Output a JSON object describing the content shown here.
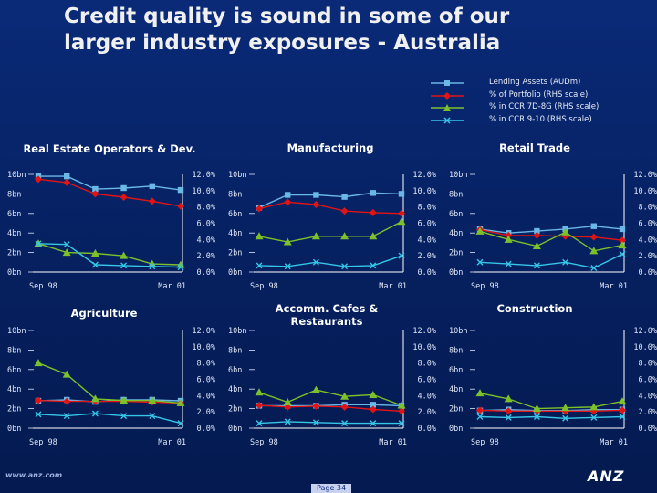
{
  "title": {
    "line1": "Credit quality is sound in some of our",
    "line2": "larger industry exposures - Australia"
  },
  "legend": [
    {
      "label": "Lending Assets (AUDm)",
      "color": "#6ab8e6",
      "marker": "square"
    },
    {
      "label": "% of Portfolio (RHS scale)",
      "color": "#e01414",
      "marker": "diamond"
    },
    {
      "label": "% in CCR 7D-8G (RHS scale)",
      "color": "#7cc12a",
      "marker": "triangle"
    },
    {
      "label": "% in CCR 9-10 (RHS scale)",
      "color": "#36c6e8",
      "marker": "x"
    }
  ],
  "footer": {
    "url": "www.anz.com",
    "page": "Page 34",
    "logo": "ANZ"
  },
  "chart_data": [
    {
      "type": "line",
      "title": "Real Estate Operators & Dev.",
      "x": [
        "Sep 98",
        "",
        "",
        "",
        "",
        "",
        "Mar 01"
      ],
      "y_left_ticks": [
        "10bn",
        "8bn",
        "6bn",
        "4bn",
        "2bn",
        "0bn"
      ],
      "y_right_ticks": [
        "12.0%",
        "10.0%",
        "8.0%",
        "6.0%",
        "4.0%",
        "2.0%",
        "0.0%"
      ],
      "ylim_left": [
        0,
        10
      ],
      "ylim_right": [
        0,
        12
      ],
      "series": [
        {
          "values_left": [
            9.8,
            9.8,
            8.5,
            8.6,
            8.8,
            8.4
          ]
        },
        {
          "values_right": [
            11.4,
            11.0,
            9.6,
            9.2,
            8.7,
            8.1
          ]
        },
        {
          "values_right": [
            3.5,
            2.4,
            2.3,
            2.0,
            1.0,
            0.9
          ]
        },
        {
          "values_right": [
            3.5,
            3.4,
            0.9,
            0.8,
            0.7,
            0.6
          ]
        }
      ]
    },
    {
      "type": "line",
      "title": "Manufacturing",
      "x": [
        "Sep 98",
        "",
        "",
        "",
        "",
        "",
        "Mar 01"
      ],
      "y_left_ticks": [
        "10bn",
        "8bn",
        "6bn",
        "4bn",
        "2bn",
        "0bn"
      ],
      "y_right_ticks": [
        "12.0%",
        "10.0%",
        "8.0%",
        "6.0%",
        "4.0%",
        "2.0%",
        "0.0%"
      ],
      "ylim_left": [
        0,
        10
      ],
      "ylim_right": [
        0,
        12
      ],
      "series": [
        {
          "values_left": [
            6.6,
            7.9,
            7.9,
            7.7,
            8.1,
            8.0
          ]
        },
        {
          "values_right": [
            7.8,
            8.6,
            8.3,
            7.5,
            7.3,
            7.2
          ]
        },
        {
          "values_right": [
            4.4,
            3.7,
            4.4,
            4.4,
            4.4,
            6.2
          ]
        },
        {
          "values_right": [
            0.8,
            0.7,
            1.2,
            0.7,
            0.8,
            2.0
          ]
        }
      ]
    },
    {
      "type": "line",
      "title": "Retail Trade",
      "x": [
        "Sep 98",
        "",
        "",
        "",
        "",
        "",
        "Mar 01"
      ],
      "y_left_ticks": [
        "10bn",
        "8bn",
        "6bn",
        "4bn",
        "2bn",
        "0bn"
      ],
      "y_right_ticks": [
        "12.0%",
        "10.0%",
        "8.0%",
        "6.0%",
        "4.0%",
        "2.0%",
        "0.0%"
      ],
      "ylim_left": [
        0,
        10
      ],
      "ylim_right": [
        0,
        12
      ],
      "series": [
        {
          "values_left": [
            4.4,
            4.0,
            4.2,
            4.4,
            4.7,
            4.4
          ]
        },
        {
          "values_right": [
            5.2,
            4.5,
            4.5,
            4.4,
            4.3,
            3.9
          ]
        },
        {
          "values_right": [
            5.0,
            4.0,
            3.2,
            4.9,
            2.6,
            3.3
          ]
        },
        {
          "values_right": [
            1.2,
            1.0,
            0.8,
            1.2,
            0.5,
            2.2
          ]
        }
      ]
    },
    {
      "type": "line",
      "title": "Agriculture",
      "x": [
        "Sep 98",
        "",
        "",
        "",
        "",
        "",
        "Mar 01"
      ],
      "y_left_ticks": [
        "10bn",
        "8bn",
        "6bn",
        "4bn",
        "2bn",
        "0bn"
      ],
      "y_right_ticks": [
        "12.0%",
        "10.0%",
        "8.0%",
        "6.0%",
        "4.0%",
        "2.0%",
        "0.0%"
      ],
      "ylim_left": [
        0,
        10
      ],
      "ylim_right": [
        0,
        12
      ],
      "series": [
        {
          "values_left": [
            2.8,
            2.9,
            2.7,
            2.9,
            2.9,
            2.8
          ]
        },
        {
          "values_right": [
            3.4,
            3.3,
            3.3,
            3.3,
            3.2,
            3.1
          ]
        },
        {
          "values_right": [
            8.0,
            6.6,
            3.6,
            3.4,
            3.4,
            3.1
          ]
        },
        {
          "values_right": [
            1.7,
            1.5,
            1.8,
            1.5,
            1.5,
            0.6
          ]
        }
      ]
    },
    {
      "type": "line",
      "title": "Accomm. Cafes & Restaurants",
      "title_lines": [
        "Accomm. Cafes &",
        "Restaurants"
      ],
      "x": [
        "Sep 98",
        "",
        "",
        "",
        "",
        "",
        "Mar 01"
      ],
      "y_left_ticks": [
        "10bn",
        "8bn",
        "6bn",
        "4bn",
        "2bn",
        "0bn"
      ],
      "y_right_ticks": [
        "12.0%",
        "10.0%",
        "8.0%",
        "6.0%",
        "4.0%",
        "2.0%",
        "0.0%"
      ],
      "ylim_left": [
        0,
        10
      ],
      "ylim_right": [
        0,
        12
      ],
      "series": [
        {
          "values_left": [
            2.3,
            2.3,
            2.3,
            2.4,
            2.4,
            2.3
          ]
        },
        {
          "values_right": [
            2.8,
            2.6,
            2.7,
            2.6,
            2.3,
            2.1
          ]
        },
        {
          "values_right": [
            4.4,
            3.2,
            4.7,
            3.9,
            4.1,
            2.8
          ]
        },
        {
          "values_right": [
            0.6,
            0.8,
            0.7,
            0.6,
            0.6,
            0.6
          ]
        }
      ]
    },
    {
      "type": "line",
      "title": "Construction",
      "x": [
        "Sep 98",
        "",
        "",
        "",
        "",
        "",
        "Mar 01"
      ],
      "y_left_ticks": [
        "10bn",
        "8bn",
        "6bn",
        "4bn",
        "2bn",
        "0bn"
      ],
      "y_right_ticks": [
        "12.0%",
        "10.0%",
        "8.0%",
        "6.0%",
        "4.0%",
        "2.0%",
        "0.0%"
      ],
      "ylim_left": [
        0,
        10
      ],
      "ylim_right": [
        0,
        12
      ],
      "series": [
        {
          "values_left": [
            1.8,
            1.9,
            1.8,
            1.8,
            1.9,
            1.9
          ]
        },
        {
          "values_right": [
            2.2,
            2.1,
            2.1,
            2.1,
            2.1,
            2.2
          ]
        },
        {
          "values_right": [
            4.3,
            3.6,
            2.4,
            2.5,
            2.6,
            3.3
          ]
        },
        {
          "values_right": [
            1.4,
            1.3,
            1.4,
            1.2,
            1.3,
            1.4
          ]
        }
      ]
    }
  ]
}
